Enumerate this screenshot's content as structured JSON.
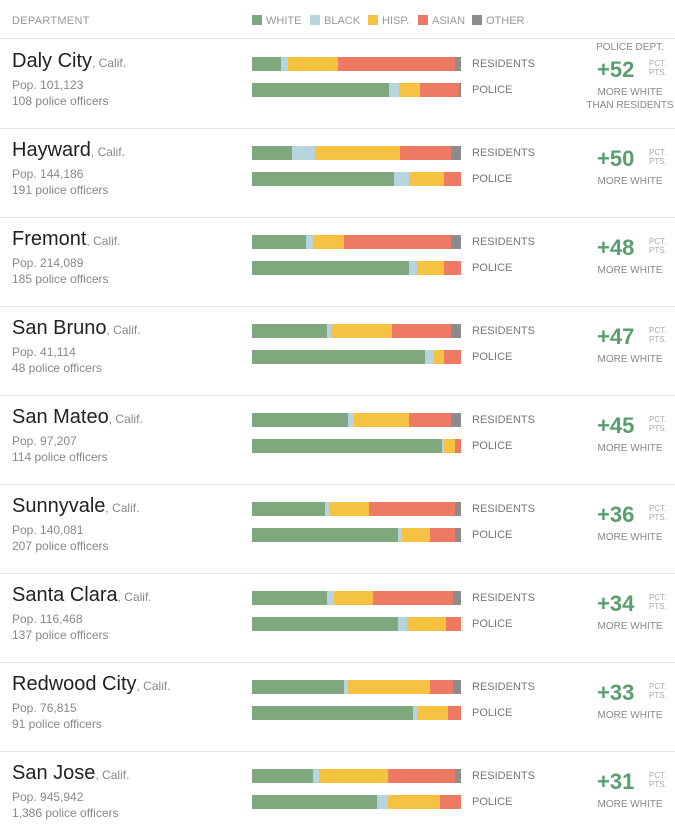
{
  "header": {
    "department_label": "DEPARTMENT",
    "police_dept_label": "POLICE DEPT.",
    "pct_label_1": "PCT.",
    "pct_label_2": "PTS.",
    "residents_label": "RESIDENTS",
    "police_label": "POLICE",
    "more_white_label": "MORE WHITE",
    "than_residents_label": "THAN RESIDENTS"
  },
  "legend": [
    {
      "label": "WHITE",
      "color": "#7fa87e"
    },
    {
      "label": "BLACK",
      "color": "#b7d4df"
    },
    {
      "label": "HISP.",
      "color": "#f5c242"
    },
    {
      "label": "ASIAN",
      "color": "#ef7a63"
    },
    {
      "label": "OTHER",
      "color": "#8c8c8c"
    }
  ],
  "chart_data": {
    "type": "bar",
    "categories_order": [
      "WHITE",
      "BLACK",
      "HISP.",
      "ASIAN",
      "OTHER"
    ],
    "rows": [
      {
        "city": "Daly City",
        "state": ", Calif.",
        "pop": "Pop. 101,123",
        "officers": "108 police officers",
        "diff": "+52",
        "residents": [
          14,
          3,
          24,
          56,
          3
        ],
        "police": [
          66,
          5,
          10,
          19,
          1
        ]
      },
      {
        "city": "Hayward",
        "state": ", Calif.",
        "pop": "Pop. 144,186",
        "officers": "191 police officers",
        "diff": "+50",
        "residents": [
          19,
          11,
          41,
          24,
          5
        ],
        "police": [
          68,
          7,
          17,
          8,
          0
        ]
      },
      {
        "city": "Fremont",
        "state": ", Calif.",
        "pop": "Pop. 214,089",
        "officers": "185 police officers",
        "diff": "+48",
        "residents": [
          26,
          3,
          15,
          51,
          5
        ],
        "police": [
          75,
          4,
          13,
          8,
          0
        ]
      },
      {
        "city": "San Bruno",
        "state": ", Calif.",
        "pop": "Pop. 41,114",
        "officers": "48 police officers",
        "diff": "+47",
        "residents": [
          36,
          2,
          29,
          28,
          5
        ],
        "police": [
          83,
          4,
          5,
          8,
          0
        ]
      },
      {
        "city": "San Mateo",
        "state": ", Calif.",
        "pop": "Pop. 97,207",
        "officers": "114 police officers",
        "diff": "+45",
        "residents": [
          46,
          3,
          26,
          20,
          5
        ],
        "police": [
          91,
          1,
          5,
          3,
          0
        ]
      },
      {
        "city": "Sunnyvale",
        "state": ", Calif.",
        "pop": "Pop. 140,081",
        "officers": "207 police officers",
        "diff": "+36",
        "residents": [
          35,
          2,
          19,
          41,
          3
        ],
        "police": [
          70,
          2,
          13,
          12,
          3
        ]
      },
      {
        "city": "Santa Clara",
        "state": ", Calif.",
        "pop": "Pop. 116,468",
        "officers": "137 police officers",
        "diff": "+34",
        "residents": [
          36,
          3,
          19,
          38,
          4
        ],
        "police": [
          70,
          4,
          19,
          7,
          0
        ]
      },
      {
        "city": "Redwood City",
        "state": ", Calif.",
        "pop": "Pop. 76,815",
        "officers": "91 police officers",
        "diff": "+33",
        "residents": [
          44,
          2,
          39,
          11,
          4
        ],
        "police": [
          77,
          2,
          15,
          6,
          0
        ]
      },
      {
        "city": "San Jose",
        "state": ", Calif.",
        "pop": "Pop. 945,942",
        "officers": "1,386 police officers",
        "diff": "+31",
        "residents": [
          29,
          3,
          33,
          32,
          3
        ],
        "police": [
          60,
          5,
          25,
          10,
          0
        ]
      }
    ]
  }
}
